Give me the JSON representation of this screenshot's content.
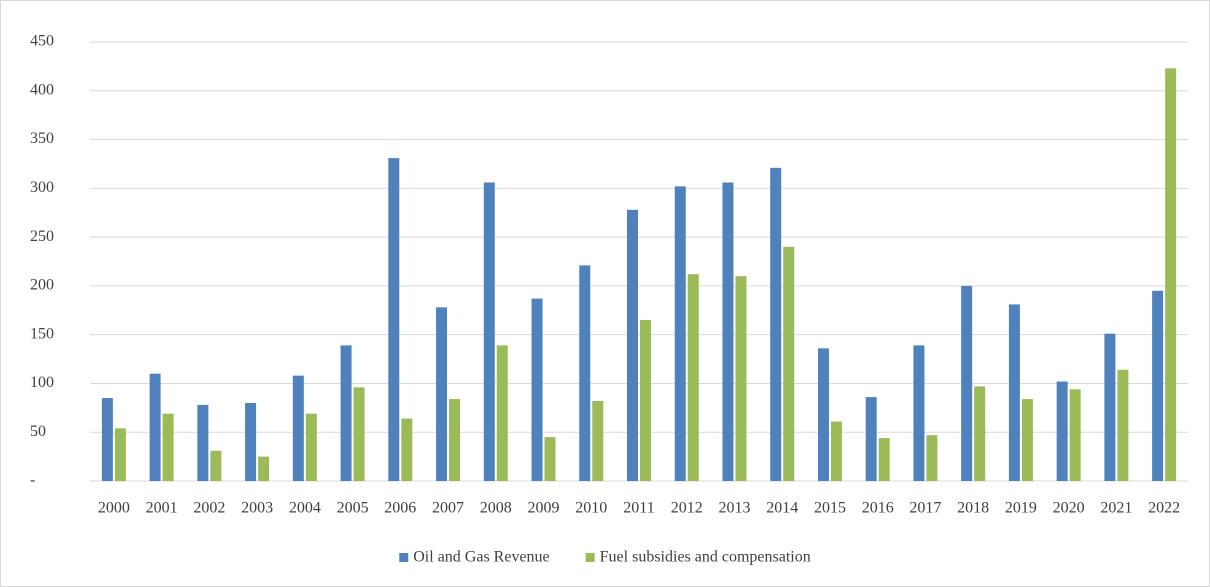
{
  "chart_data": {
    "type": "bar",
    "categories": [
      "2000",
      "2001",
      "2002",
      "2003",
      "2004",
      "2005",
      "2006",
      "2007",
      "2008",
      "2009",
      "2010",
      "2011",
      "2012",
      "2013",
      "2014",
      "2015",
      "2016",
      "2017",
      "2018",
      "2019",
      "2020",
      "2021",
      "2022"
    ],
    "series": [
      {
        "name": "Oil and Gas Revenue",
        "color": "#4f81bd",
        "values": [
          85,
          110,
          78,
          80,
          108,
          139,
          331,
          178,
          306,
          187,
          221,
          278,
          302,
          306,
          321,
          136,
          86,
          139,
          200,
          181,
          102,
          151,
          195
        ]
      },
      {
        "name": "Fuel subsidies and compensation",
        "color": "#9bbb59",
        "values": [
          54,
          69,
          31,
          25,
          69,
          96,
          64,
          84,
          139,
          45,
          82,
          165,
          212,
          210,
          240,
          61,
          44,
          47,
          97,
          84,
          94,
          114,
          423
        ]
      }
    ],
    "ylim": [
      0,
      450
    ],
    "yticks": [
      {
        "value": 0,
        "label": "-"
      },
      50,
      100,
      150,
      200,
      250,
      300,
      350,
      400,
      450
    ],
    "grid": true,
    "legend": "bottom"
  }
}
